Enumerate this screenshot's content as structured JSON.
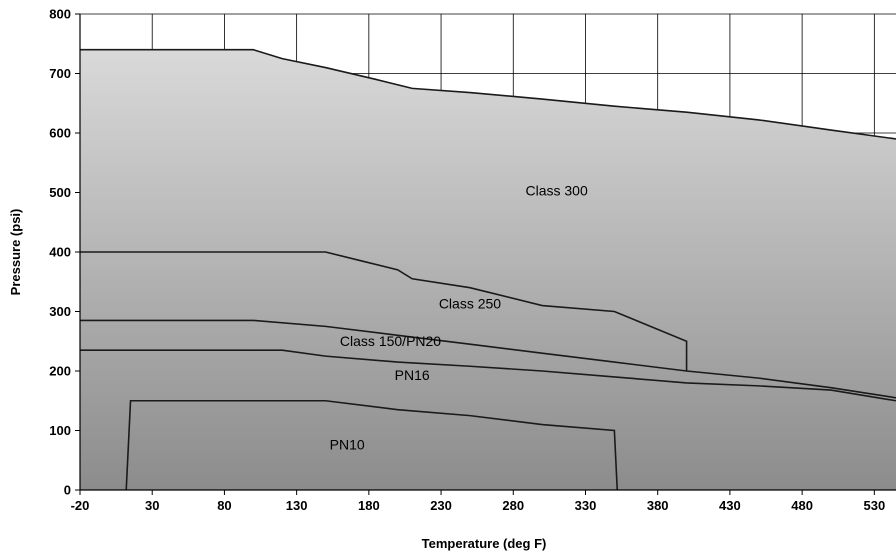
{
  "chart_data": {
    "type": "area",
    "title": "",
    "xlabel": "Temperature (deg F)",
    "ylabel": "Pressure (psi)",
    "xlim": [
      -20,
      545
    ],
    "ylim": [
      0,
      800
    ],
    "xticks": [
      -20,
      30,
      80,
      130,
      180,
      230,
      280,
      330,
      380,
      430,
      480,
      530
    ],
    "yticks": [
      0,
      100,
      200,
      300,
      400,
      500,
      600,
      700,
      800
    ],
    "grid": true,
    "series": [
      {
        "name": "Class 300",
        "label_at": [
          310,
          495
        ],
        "x": [
          -20,
          100,
          120,
          150,
          185,
          210,
          250,
          300,
          350,
          400,
          450,
          500,
          545
        ],
        "y": [
          740,
          740,
          725,
          710,
          690,
          675,
          668,
          657,
          645,
          635,
          622,
          605,
          590
        ]
      },
      {
        "name": "Class 250",
        "label_at": [
          250,
          305
        ],
        "x": [
          -20,
          150,
          175,
          200,
          210,
          250,
          300,
          350,
          400,
          400
        ],
        "y": [
          400,
          400,
          385,
          370,
          355,
          340,
          310,
          300,
          250,
          200
        ]
      },
      {
        "name": "Class 150/PN20",
        "label_at": [
          195,
          242
        ],
        "x": [
          -20,
          100,
          150,
          200,
          250,
          300,
          350,
          400,
          450,
          500,
          545
        ],
        "y": [
          285,
          285,
          275,
          260,
          245,
          230,
          215,
          200,
          188,
          172,
          155
        ]
      },
      {
        "name": "PN16",
        "label_at": [
          210,
          185
        ],
        "x": [
          -20,
          120,
          150,
          200,
          250,
          300,
          350,
          400,
          450,
          500,
          545
        ],
        "y": [
          235,
          235,
          225,
          215,
          208,
          200,
          190,
          180,
          175,
          168,
          150
        ]
      },
      {
        "name": "PN10",
        "label_at": [
          165,
          68
        ],
        "x": [
          12,
          15,
          150,
          200,
          250,
          300,
          350,
          352
        ],
        "y": [
          0,
          150,
          150,
          135,
          125,
          110,
          100,
          0
        ]
      }
    ]
  }
}
